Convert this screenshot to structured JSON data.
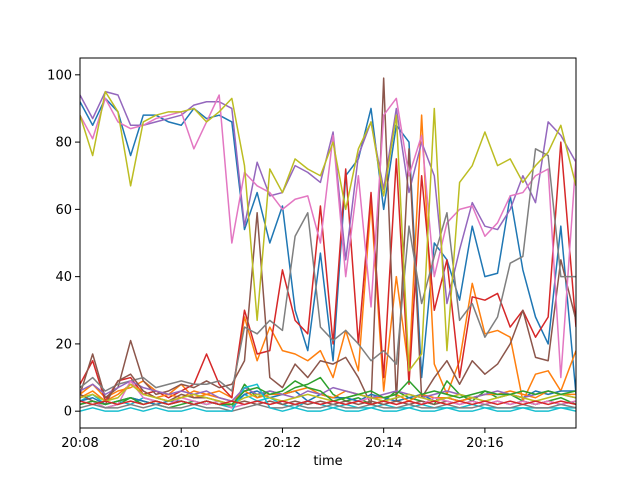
{
  "chart_data": {
    "type": "line",
    "title": "",
    "xlabel": "time",
    "ylabel": "",
    "x_range_minutes": [
      0,
      9.8
    ],
    "ylim": [
      -5,
      105
    ],
    "x_ticks": [
      {
        "label": "20:08",
        "minute": 0
      },
      {
        "label": "20:10",
        "minute": 2
      },
      {
        "label": "20:12",
        "minute": 4
      },
      {
        "label": "20:14",
        "minute": 6
      },
      {
        "label": "20:16",
        "minute": 8
      }
    ],
    "y_ticks": [
      0,
      20,
      40,
      60,
      80,
      100
    ],
    "grid": false,
    "legend": "none",
    "x": [
      0,
      0.25,
      0.5,
      0.75,
      1,
      1.25,
      1.5,
      1.75,
      2,
      2.25,
      2.5,
      2.75,
      3,
      3.25,
      3.5,
      3.75,
      4,
      4.25,
      4.5,
      4.75,
      5,
      5.25,
      5.5,
      5.75,
      6,
      6.25,
      6.5,
      6.75,
      7,
      7.25,
      7.5,
      7.75,
      8,
      8.25,
      8.5,
      8.75,
      9,
      9.25,
      9.5,
      9.8
    ],
    "series": [
      {
        "color": "#1f77b4",
        "values": [
          92,
          85,
          93,
          89,
          76,
          88,
          88,
          86,
          85,
          90,
          87,
          88,
          86,
          54,
          65,
          50,
          61,
          30,
          18,
          47,
          15,
          70,
          75,
          90,
          60,
          85,
          80,
          10,
          50,
          45,
          33,
          55,
          40,
          41,
          64,
          42,
          28,
          20,
          55,
          5
        ]
      },
      {
        "color": "#ff7f0e",
        "values": [
          5,
          8,
          4,
          6,
          7,
          9,
          6,
          5,
          8,
          4,
          5,
          6,
          4,
          28,
          15,
          25,
          18,
          17,
          15,
          18,
          10,
          24,
          12,
          62,
          6,
          40,
          12,
          88,
          14,
          5,
          15,
          38,
          23,
          24,
          22,
          3,
          11,
          12,
          6,
          18
        ]
      },
      {
        "color": "#2ca02c",
        "values": [
          2,
          3,
          1,
          2,
          4,
          3,
          2,
          1,
          2,
          3,
          2,
          3,
          1,
          8,
          4,
          6,
          5,
          7,
          8,
          10,
          5,
          3,
          4,
          2,
          3,
          6,
          4,
          3,
          2,
          9,
          5,
          3,
          6,
          4,
          5,
          3,
          2,
          3,
          4,
          2
        ]
      },
      {
        "color": "#d62728",
        "values": [
          8,
          15,
          3,
          9,
          10,
          5,
          6,
          4,
          6,
          8,
          17,
          8,
          4,
          30,
          17,
          18,
          42,
          27,
          23,
          61,
          20,
          72,
          20,
          65,
          10,
          75,
          8,
          70,
          30,
          45,
          10,
          34,
          33,
          35,
          25,
          30,
          22,
          28,
          80,
          25
        ]
      },
      {
        "color": "#9467bd",
        "values": [
          94,
          87,
          95,
          94,
          85,
          85,
          86,
          87,
          88,
          91,
          92,
          92,
          90,
          55,
          74,
          64,
          65,
          73,
          71,
          68,
          83,
          45,
          76,
          86,
          66,
          90,
          65,
          80,
          70,
          32,
          48,
          62,
          55,
          54,
          60,
          70,
          62,
          86,
          82,
          74
        ]
      },
      {
        "color": "#8c564b",
        "values": [
          5,
          17,
          4,
          7,
          21,
          9,
          5,
          6,
          8,
          7,
          9,
          7,
          8,
          15,
          59,
          10,
          7,
          14,
          10,
          15,
          14,
          16,
          10,
          2,
          99,
          3,
          78,
          4,
          10,
          15,
          8,
          15,
          11,
          14,
          20,
          30,
          16,
          15,
          45,
          27
        ]
      },
      {
        "color": "#e377c2",
        "values": [
          88,
          81,
          93,
          86,
          84,
          85,
          87,
          88,
          89,
          78,
          86,
          94,
          50,
          71,
          67,
          65,
          60,
          63,
          64,
          50,
          82,
          40,
          70,
          31,
          88,
          93,
          70,
          82,
          40,
          56,
          60,
          61,
          52,
          56,
          64,
          65,
          70,
          72,
          10,
          75
        ]
      },
      {
        "color": "#7f7f7f",
        "values": [
          7,
          10,
          6,
          8,
          9,
          10,
          7,
          8,
          9,
          8,
          8,
          9,
          6,
          25,
          23,
          27,
          24,
          52,
          59,
          25,
          21,
          24,
          20,
          15,
          18,
          14,
          55,
          32,
          46,
          59,
          27,
          32,
          22,
          28,
          44,
          46,
          78,
          76,
          40,
          40
        ]
      },
      {
        "color": "#bcbd22",
        "values": [
          88,
          76,
          95,
          89,
          67,
          86,
          88,
          89,
          89,
          90,
          86,
          89,
          93,
          73,
          27,
          72,
          65,
          75,
          72,
          70,
          80,
          60,
          78,
          86,
          64,
          88,
          12,
          17,
          90,
          18,
          68,
          73,
          83,
          73,
          75,
          68,
          73,
          77,
          85,
          67
        ]
      },
      {
        "color": "#17becf",
        "values": [
          3,
          5,
          2,
          3,
          2,
          4,
          3,
          2,
          3,
          2,
          3,
          2,
          1,
          5,
          3,
          4,
          2,
          1,
          3,
          2,
          1,
          2,
          1,
          1,
          2,
          1,
          1,
          2,
          1,
          1,
          1,
          2,
          1,
          1,
          1,
          1,
          1,
          1,
          1,
          1
        ]
      },
      {
        "color": "#1f77b4",
        "values": [
          3,
          4,
          2,
          3,
          4,
          3,
          2,
          3,
          3,
          2,
          3,
          2,
          2,
          5,
          6,
          4,
          5,
          6,
          3,
          5,
          4,
          4,
          3,
          5,
          4,
          3,
          4,
          5,
          3,
          4,
          3,
          4,
          5,
          5,
          5,
          4,
          6,
          5,
          6,
          6
        ]
      },
      {
        "color": "#ff7f0e",
        "values": [
          4,
          6,
          3,
          5,
          8,
          6,
          4,
          5,
          4,
          6,
          5,
          4,
          3,
          6,
          4,
          5,
          5,
          6,
          7,
          5,
          4,
          6,
          5,
          4,
          4,
          5,
          3,
          5,
          4,
          4,
          3,
          4,
          5,
          5,
          6,
          5,
          4,
          6,
          5,
          5
        ]
      },
      {
        "color": "#9467bd",
        "values": [
          6,
          8,
          5,
          7,
          9,
          7,
          6,
          5,
          6,
          5,
          6,
          4,
          3,
          7,
          5,
          6,
          5,
          4,
          6,
          5,
          7,
          6,
          5,
          4,
          5,
          6,
          5,
          4,
          5,
          6,
          5,
          4,
          5,
          6,
          5,
          4,
          5,
          6,
          5,
          4
        ]
      },
      {
        "color": "#8c564b",
        "values": [
          5,
          3,
          2,
          9,
          11,
          6,
          4,
          3,
          5,
          4,
          4,
          3,
          2,
          3,
          2,
          3,
          2,
          3,
          2,
          3,
          2,
          3,
          2,
          3,
          2,
          3,
          2,
          3,
          2,
          3,
          2,
          3,
          2,
          3,
          2,
          3,
          2,
          3,
          2,
          3
        ]
      },
      {
        "color": "#e377c2",
        "values": [
          2,
          3,
          1,
          2,
          9,
          4,
          3,
          2,
          4,
          3,
          2,
          3,
          1,
          2,
          3,
          2,
          3,
          2,
          3,
          2,
          3,
          2,
          3,
          4,
          3,
          2,
          3,
          2,
          4,
          3,
          2,
          3,
          2,
          3,
          2,
          3,
          2,
          3,
          2,
          3
        ]
      },
      {
        "color": "#7f7f7f",
        "values": [
          1,
          2,
          1,
          1,
          2,
          1,
          2,
          1,
          1,
          2,
          1,
          1,
          0,
          1,
          2,
          1,
          1,
          2,
          1,
          1,
          2,
          1,
          1,
          2,
          1,
          1,
          2,
          1,
          1,
          2,
          1,
          1,
          2,
          1,
          1,
          2,
          1,
          1,
          2,
          1
        ]
      },
      {
        "color": "#bcbd22",
        "values": [
          4,
          5,
          3,
          4,
          8,
          5,
          4,
          3,
          4,
          5,
          4,
          3,
          2,
          4,
          5,
          4,
          3,
          4,
          5,
          4,
          3,
          4,
          5,
          4,
          3,
          4,
          5,
          4,
          3,
          4,
          5,
          4,
          3,
          4,
          5,
          4,
          3,
          4,
          5,
          4
        ]
      },
      {
        "color": "#17becf",
        "values": [
          0,
          1,
          0,
          0,
          1,
          0,
          1,
          0,
          0,
          1,
          0,
          0,
          0,
          7,
          8,
          1,
          0,
          1,
          0,
          0,
          1,
          0,
          0,
          1,
          0,
          0,
          1,
          0,
          0,
          1,
          0,
          0,
          1,
          0,
          0,
          1,
          0,
          0,
          1,
          0
        ]
      },
      {
        "color": "#2ca02c",
        "values": [
          2,
          3,
          2,
          3,
          4,
          2,
          3,
          2,
          3,
          2,
          3,
          2,
          2,
          6,
          7,
          5,
          6,
          9,
          7,
          6,
          3,
          4,
          5,
          6,
          4,
          5,
          9,
          5,
          6,
          5,
          4,
          5,
          6,
          5,
          5,
          6,
          5,
          6,
          5,
          6
        ]
      },
      {
        "color": "#d62728",
        "values": [
          3,
          2,
          3,
          2,
          3,
          2,
          3,
          2,
          3,
          2,
          3,
          2,
          3,
          2,
          3,
          2,
          3,
          2,
          3,
          2,
          3,
          2,
          3,
          2,
          3,
          2,
          3,
          2,
          3,
          2,
          3,
          2,
          3,
          2,
          3,
          2,
          3,
          2,
          3,
          2
        ]
      }
    ]
  }
}
